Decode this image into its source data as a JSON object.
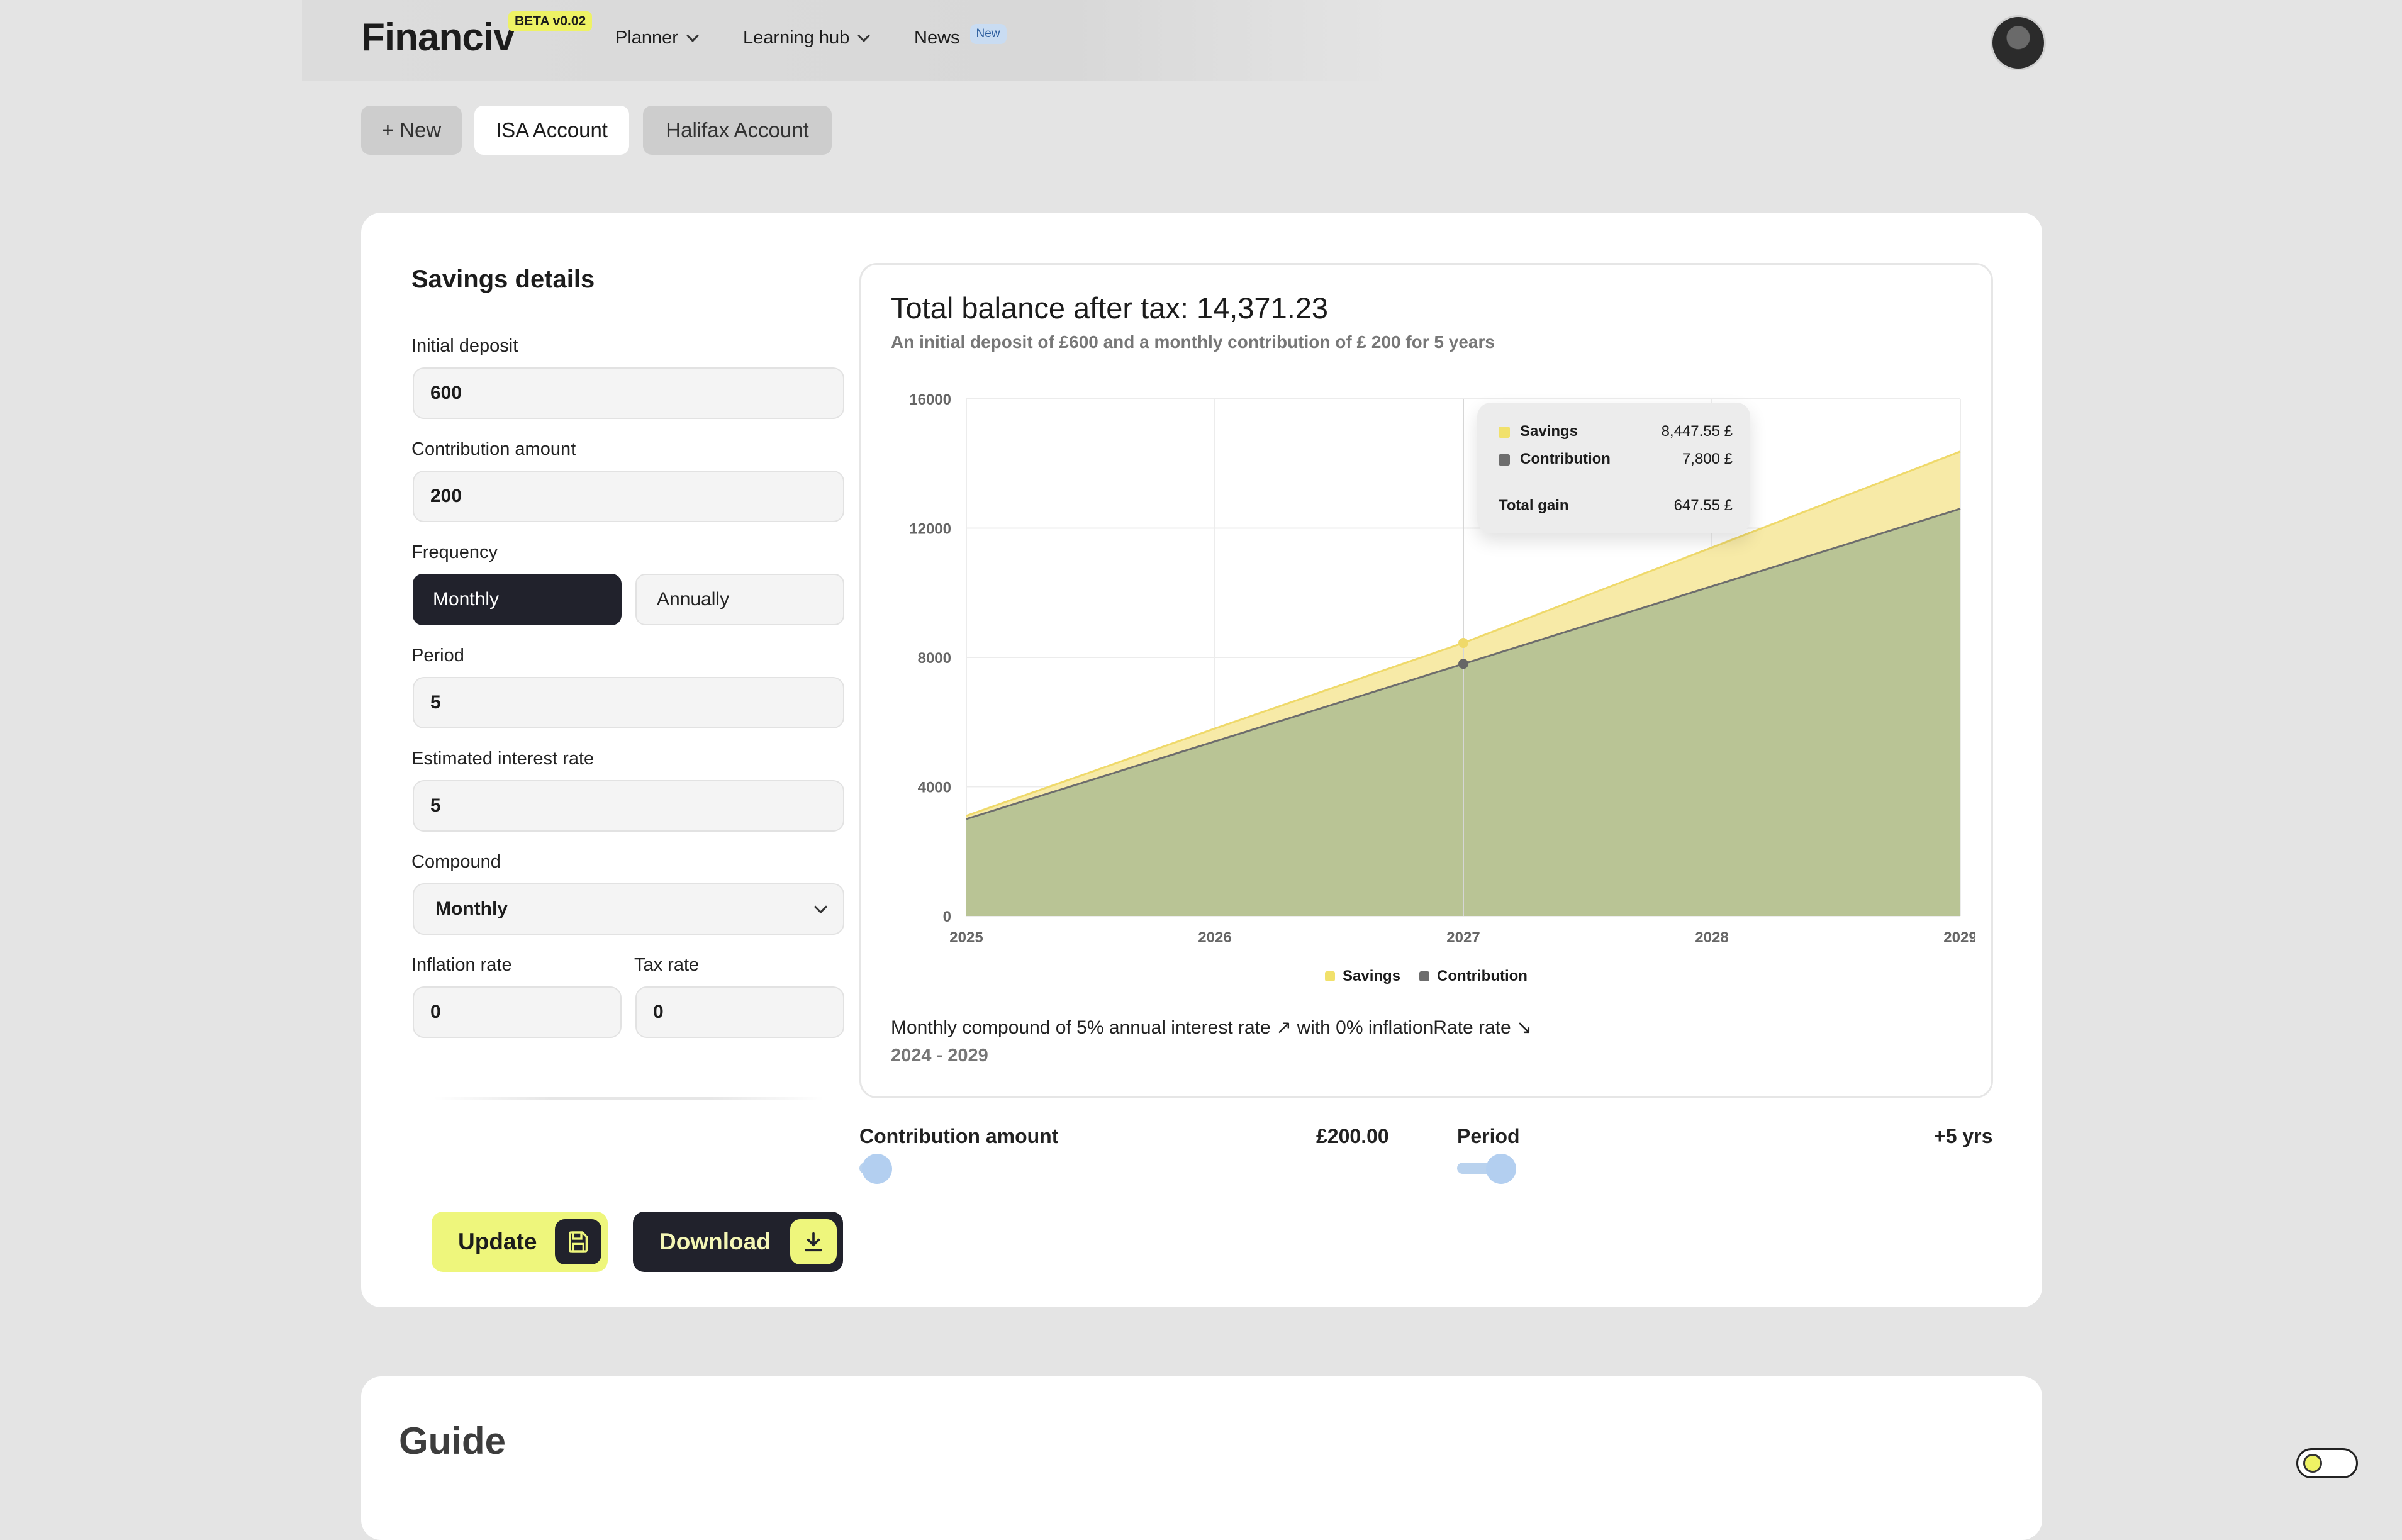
{
  "app": {
    "logo": "Financiv",
    "beta_badge": "BETA v0.02",
    "nav": [
      {
        "label": "Planner"
      },
      {
        "label": "Learning hub"
      },
      {
        "label": "News",
        "badge": "New"
      }
    ]
  },
  "tabs": {
    "new_label": "+ New",
    "items": [
      "ISA Account",
      "Halifax Account"
    ],
    "active": "ISA Account"
  },
  "form": {
    "title": "Savings details",
    "initial_deposit": {
      "label": "Initial deposit",
      "value": "600"
    },
    "contribution": {
      "label": "Contribution amount",
      "value": "200"
    },
    "frequency": {
      "label": "Frequency",
      "options": [
        "Monthly",
        "Annually"
      ],
      "selected": "Monthly"
    },
    "period": {
      "label": "Period",
      "value": "5"
    },
    "interest": {
      "label": "Estimated interest rate",
      "value": "5"
    },
    "compound": {
      "label": "Compound",
      "value": "Monthly"
    },
    "inflation": {
      "label": "Inflation rate",
      "value": "0"
    },
    "tax": {
      "label": "Tax rate",
      "value": "0"
    }
  },
  "actions": {
    "update_label": "Update",
    "download_label": "Download"
  },
  "chart_panel": {
    "title": "Total balance after tax: 14,371.23",
    "subtitle": "An initial deposit of £600 and a monthly contribution of £ 200 for 5 years",
    "footnote": "Monthly compound of 5% annual interest rate ↗ with 0% inflationRate rate ↘",
    "range": "2024 - 2029",
    "tooltip": {
      "savings_label": "Savings",
      "savings_value": "8,447.55 £",
      "contribution_label": "Contribution",
      "contribution_value": "7,800 £",
      "gain_label": "Total gain",
      "gain_value": "647.55 £"
    }
  },
  "chart_data": {
    "type": "area",
    "title": "",
    "xlabel": "",
    "ylabel": "",
    "x": [
      "2025",
      "2026",
      "2027",
      "2028",
      "2029"
    ],
    "x_ticks": [
      "2025",
      "2026",
      "2027",
      "2028",
      "2029"
    ],
    "y_ticks": [
      "0",
      "4000",
      "8000",
      "12000",
      "16000"
    ],
    "ylim": [
      0,
      16000
    ],
    "grid": true,
    "legend": "bottom-center",
    "series": [
      {
        "name": "Savings",
        "color": "#f1e16b",
        "values": [
          3100,
          5800,
          8447.55,
          11400,
          14371.23
        ]
      },
      {
        "name": "Contribution",
        "color": "#6d6d6d",
        "values": [
          3000,
          5400,
          7800,
          10200,
          12600
        ]
      }
    ],
    "highlight": {
      "x": "2027",
      "savings": 8447.55,
      "contribution": 7800
    }
  },
  "sliders": {
    "contribution": {
      "label": "Contribution amount",
      "value": "£200.00"
    },
    "period": {
      "label": "Period",
      "value": "+5 yrs"
    }
  },
  "guide": {
    "title": "Guide"
  }
}
